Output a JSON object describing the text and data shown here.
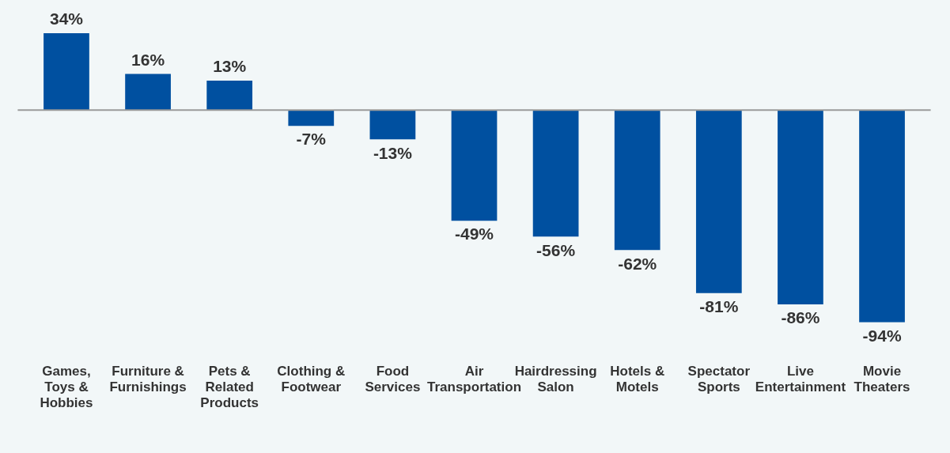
{
  "chart_data": {
    "type": "bar",
    "categories": [
      "Games, Toys & Hobbies",
      "Furniture & Furnishings",
      "Pets & Related Products",
      "Clothing & Footwear",
      "Food Services",
      "Air Transportation",
      "Hairdressing Salon",
      "Hotels & Motels",
      "Spectator Sports",
      "Live Entertainment",
      "Movie Theaters"
    ],
    "values": [
      34,
      16,
      13,
      -7,
      -13,
      -49,
      -56,
      -62,
      -81,
      -86,
      -94
    ],
    "value_labels": [
      "34%",
      "16%",
      "13%",
      "-7%",
      "-13%",
      "-49%",
      "-56%",
      "-62%",
      "-81%",
      "-86%",
      "-94%"
    ],
    "color": "#0050a0"
  }
}
